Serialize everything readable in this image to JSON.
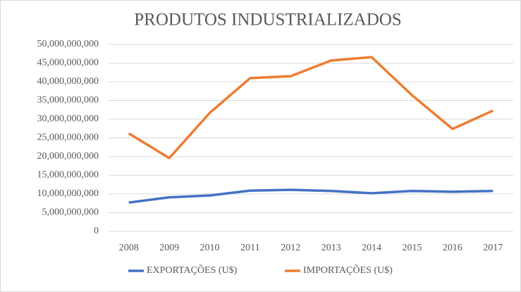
{
  "chart_data": {
    "type": "line",
    "title": "PRODUTOS INDUSTRIALIZADOS",
    "categories": [
      "2008",
      "2009",
      "2010",
      "2011",
      "2012",
      "2013",
      "2014",
      "2015",
      "2016",
      "2017"
    ],
    "series": [
      {
        "name": "EXPORTAÇÕES (U$)",
        "color": "#4472c4",
        "values": [
          7700000000,
          9100000000,
          9600000000,
          10900000000,
          11100000000,
          10800000000,
          10200000000,
          10800000000,
          10600000000,
          10800000000
        ]
      },
      {
        "name": "IMPORTAÇÕES (U$)",
        "color": "#ed7d31",
        "values": [
          26200000000,
          19600000000,
          31700000000,
          41000000000,
          41500000000,
          45700000000,
          46600000000,
          36400000000,
          27400000000,
          32300000000
        ]
      }
    ],
    "ylim": [
      0,
      50000000000
    ],
    "yticks": [
      0,
      {
        "value": 5000000000,
        "label": "5,000,000,000"
      },
      {
        "value": 10000000000,
        "label": "10,000,000,000"
      },
      {
        "value": 15000000000,
        "label": "15,000,000,000"
      },
      {
        "value": 20000000000,
        "label": "20,000,000,000"
      },
      {
        "value": 25000000000,
        "label": "25,000,000,000"
      },
      {
        "value": 30000000000,
        "label": "30,000,000,000"
      },
      {
        "value": 35000000000,
        "label": "35,000,000,000"
      },
      {
        "value": 40000000000,
        "label": "40,000,000,000"
      },
      {
        "value": 45000000000,
        "label": "45,000,000,000"
      },
      {
        "value": 50000000000,
        "label": "50,000,000,000"
      }
    ],
    "grid": true,
    "legend": "bottom"
  }
}
